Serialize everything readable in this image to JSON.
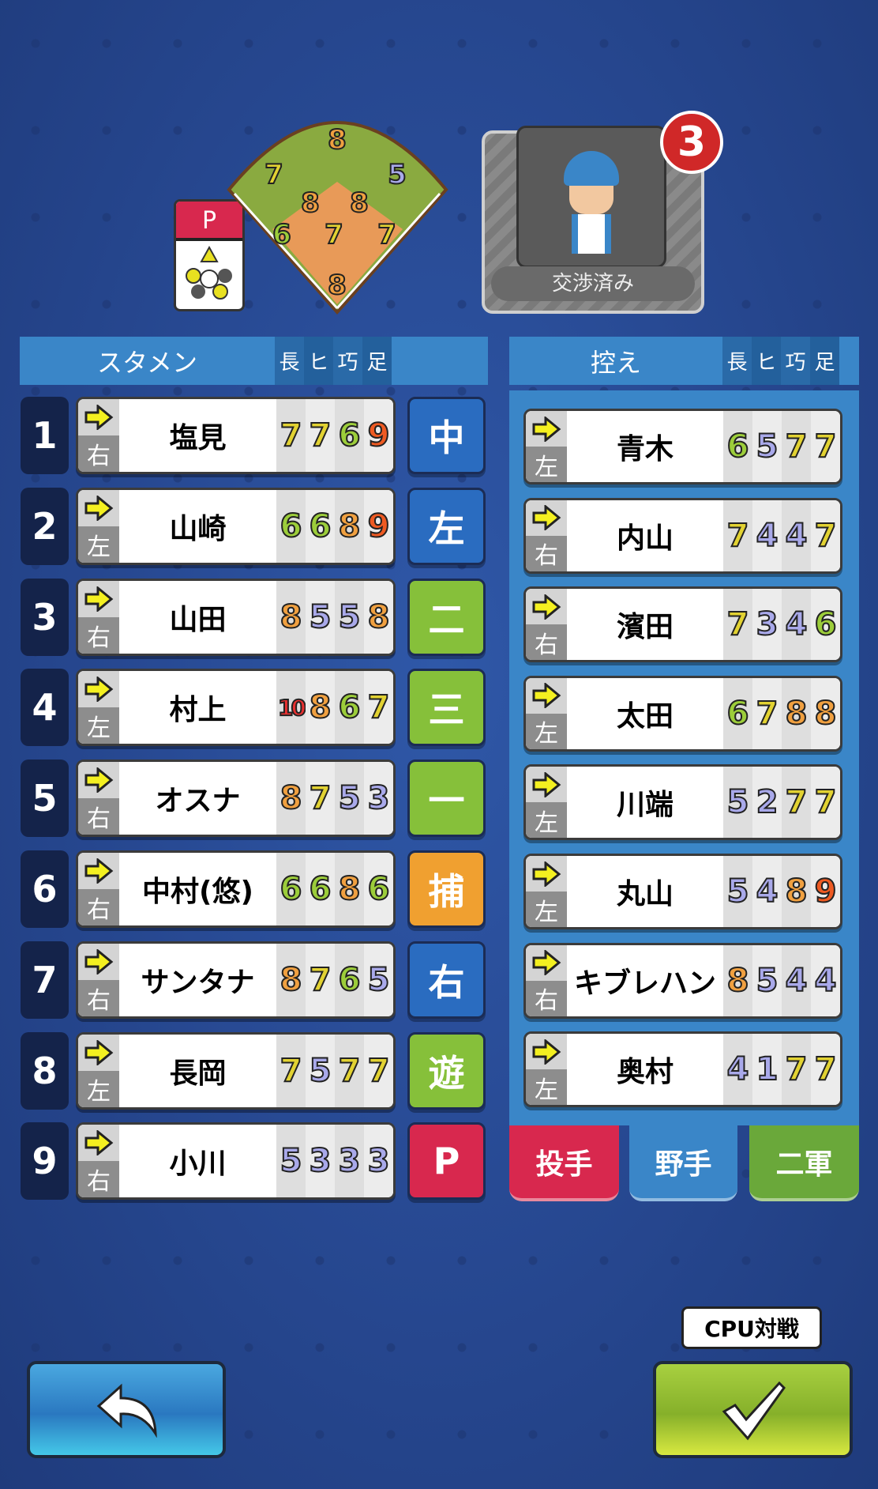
{
  "header_left": {
    "title": "スタメン",
    "stats": [
      "長",
      "ヒ",
      "巧",
      "足"
    ]
  },
  "header_right": {
    "title": "控え",
    "stats": [
      "長",
      "ヒ",
      "巧",
      "足"
    ]
  },
  "stat_colors": {
    "1": "#a9a9ea",
    "2": "#a9a9ea",
    "3": "#a9a9ea",
    "4": "#a9a9ea",
    "5": "#a9a9ea",
    "6": "#9ccd3a",
    "7": "#e2d232",
    "8": "#f0a040",
    "9": "#ee5a22",
    "10": "#e83030"
  },
  "pitcher_card": {
    "label": "P",
    "color": "#d8284e"
  },
  "field_ratings": {
    "cf": "8",
    "lf": "7",
    "rf": "5",
    "ss": "8",
    "second": "8",
    "third": "6",
    "pitcher": "7",
    "first": "7",
    "catcher": "8"
  },
  "negotiation": {
    "label": "交渉済み",
    "badge": "3"
  },
  "lineup": [
    {
      "order": "1",
      "hand": "右",
      "name": "塩見",
      "stats": [
        7,
        7,
        6,
        9
      ],
      "position": "中",
      "pos_color": "#2a6cc0"
    },
    {
      "order": "2",
      "hand": "左",
      "name": "山崎",
      "stats": [
        6,
        6,
        8,
        9
      ],
      "position": "左",
      "pos_color": "#2a6cc0"
    },
    {
      "order": "3",
      "hand": "右",
      "name": "山田",
      "stats": [
        8,
        5,
        5,
        8
      ],
      "position": "二",
      "pos_color": "#86c03a"
    },
    {
      "order": "4",
      "hand": "左",
      "name": "村上",
      "stats": [
        10,
        8,
        6,
        7
      ],
      "position": "三",
      "pos_color": "#86c03a"
    },
    {
      "order": "5",
      "hand": "右",
      "name": "オスナ",
      "stats": [
        8,
        7,
        5,
        3
      ],
      "position": "一",
      "pos_color": "#86c03a"
    },
    {
      "order": "6",
      "hand": "右",
      "name": "中村(悠)",
      "stats": [
        6,
        6,
        8,
        6
      ],
      "position": "捕",
      "pos_color": "#f0a030"
    },
    {
      "order": "7",
      "hand": "右",
      "name": "サンタナ",
      "stats": [
        8,
        7,
        6,
        5
      ],
      "position": "右",
      "pos_color": "#2a6cc0"
    },
    {
      "order": "8",
      "hand": "左",
      "name": "長岡",
      "stats": [
        7,
        5,
        7,
        7
      ],
      "position": "遊",
      "pos_color": "#86c03a"
    },
    {
      "order": "9",
      "hand": "右",
      "name": "小川",
      "stats": [
        5,
        3,
        3,
        3
      ],
      "position": "P",
      "pos_color": "#d8284e"
    }
  ],
  "bench": [
    {
      "hand": "左",
      "name": "青木",
      "stats": [
        6,
        5,
        7,
        7
      ]
    },
    {
      "hand": "右",
      "name": "内山",
      "stats": [
        7,
        4,
        4,
        7
      ]
    },
    {
      "hand": "右",
      "name": "濱田",
      "stats": [
        7,
        3,
        4,
        6
      ]
    },
    {
      "hand": "左",
      "name": "太田",
      "stats": [
        6,
        7,
        8,
        8
      ]
    },
    {
      "hand": "左",
      "name": "川端",
      "stats": [
        5,
        2,
        7,
        7
      ]
    },
    {
      "hand": "左",
      "name": "丸山",
      "stats": [
        5,
        4,
        8,
        9
      ]
    },
    {
      "hand": "右",
      "name": "キブレハン",
      "stats": [
        8,
        5,
        4,
        4
      ]
    },
    {
      "hand": "左",
      "name": "奥村",
      "stats": [
        4,
        1,
        7,
        7
      ]
    }
  ],
  "tabs": [
    {
      "label": "投手",
      "color": "#d8284e"
    },
    {
      "label": "野手",
      "color": "#3a86c8"
    },
    {
      "label": "二軍",
      "color": "#6aa83a"
    }
  ],
  "buttons": {
    "back_icon": "back-arrow-icon",
    "confirm_icon": "checkmark-icon",
    "confirm_tooltip": "CPU対戦"
  }
}
